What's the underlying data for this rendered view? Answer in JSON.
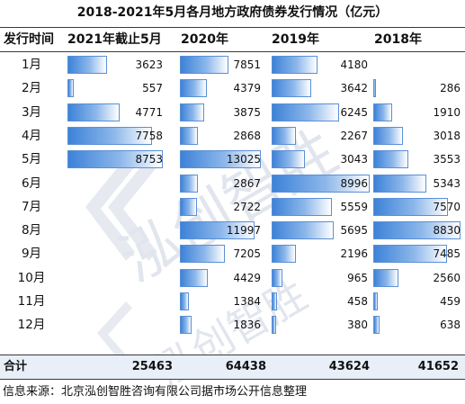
{
  "title": "2018-2021年5月各月地方政府债券发行情况（亿元）",
  "headers": {
    "period": "发行时间",
    "col2021": "2021年截止5月",
    "col2020": "2020年",
    "col2019": "2019年",
    "col2018": "2018年"
  },
  "rows": [
    {
      "month": "1月",
      "v2021": 3623,
      "v2020": 7851,
      "v2019": 4180,
      "v2018": null
    },
    {
      "month": "2月",
      "v2021": 557,
      "v2020": 4379,
      "v2019": 3642,
      "v2018": 286
    },
    {
      "month": "3月",
      "v2021": 4771,
      "v2020": 3875,
      "v2019": 6245,
      "v2018": 1910
    },
    {
      "month": "4月",
      "v2021": 7758,
      "v2020": 2868,
      "v2019": 2267,
      "v2018": 3018
    },
    {
      "month": "5月",
      "v2021": 8753,
      "v2020": 13025,
      "v2019": 3043,
      "v2018": 3553
    },
    {
      "month": "6月",
      "v2021": null,
      "v2020": 2867,
      "v2019": 8996,
      "v2018": 5343
    },
    {
      "month": "7月",
      "v2021": null,
      "v2020": 2722,
      "v2019": 5559,
      "v2018": 7570
    },
    {
      "month": "8月",
      "v2021": null,
      "v2020": 11997,
      "v2019": 5695,
      "v2018": 8830
    },
    {
      "month": "9月",
      "v2021": null,
      "v2020": 7205,
      "v2019": 2196,
      "v2018": 7485
    },
    {
      "month": "10月",
      "v2021": null,
      "v2020": 4429,
      "v2019": 965,
      "v2018": 2560
    },
    {
      "month": "11月",
      "v2021": null,
      "v2020": 1384,
      "v2019": 458,
      "v2018": 459
    },
    {
      "month": "12月",
      "v2021": null,
      "v2020": 1836,
      "v2019": 380,
      "v2018": 638
    }
  ],
  "totals": {
    "label": "合计",
    "v2021": "25463",
    "v2020": "64438",
    "v2019": "43624",
    "v2018": "41652"
  },
  "source": "信息来源：北京泓创智胜咨询有限公司据市场公开信息整理",
  "watermark": "泓创智胜",
  "colors": {
    "bar": "#3d82d8",
    "bar_border": "#5b8fd6",
    "total_bg": "#e8eff9",
    "watermark": "#dfe3ee"
  }
}
